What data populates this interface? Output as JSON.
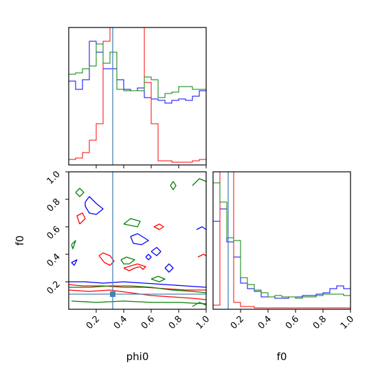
{
  "chart_data": {
    "type": "corner",
    "params": [
      "phi0",
      "f0"
    ],
    "truth": {
      "phi0": 0.32,
      "f0": 0.11
    },
    "truth_color": "#4682b4",
    "grid": false,
    "series": [
      {
        "color": "#0000ff"
      },
      {
        "color": "#ff0000"
      },
      {
        "color": "#008000"
      }
    ],
    "panels": [
      {
        "id": "phi0-hist",
        "type": "histogram",
        "x_param": "phi0",
        "xlim": [
          0,
          1
        ],
        "ylim": [
          0,
          1
        ],
        "bin_edges": [
          0,
          0.05,
          0.1,
          0.15,
          0.2,
          0.25,
          0.3,
          0.35,
          0.4,
          0.45,
          0.5,
          0.55,
          0.6,
          0.65,
          0.7,
          0.75,
          0.8,
          0.85,
          0.9,
          0.95,
          1.0
        ],
        "hist": [
          {
            "series": 0,
            "values": [
              0.61,
              0.55,
              0.62,
              0.9,
              0.82,
              0.7,
              0.7,
              0.62,
              0.55,
              0.54,
              0.56,
              0.49,
              0.48,
              0.47,
              0.45,
              0.47,
              0.48,
              0.47,
              0.5,
              0.54
            ]
          },
          {
            "series": 1,
            "values": [
              0.04,
              0.05,
              0.09,
              0.18,
              0.3,
              0.9,
              1.0,
              1.0,
              1.0,
              1.0,
              1.0,
              0.6,
              0.3,
              0.03,
              0.03,
              0.02,
              0.02,
              0.02,
              0.03,
              0.04
            ]
          },
          {
            "series": 2,
            "values": [
              0.66,
              0.67,
              0.7,
              0.72,
              0.88,
              0.74,
              0.82,
              0.55,
              0.54,
              0.54,
              0.54,
              0.64,
              0.62,
              0.49,
              0.52,
              0.53,
              0.57,
              0.57,
              0.55,
              0.55
            ]
          }
        ],
        "truth_x": 0.32
      },
      {
        "id": "f0-hist",
        "type": "histogram",
        "x_param": "f0",
        "xlim": [
          0,
          1
        ],
        "ylim": [
          0,
          1
        ],
        "xticks": [
          0.2,
          0.4,
          0.6,
          0.8,
          1.0
        ],
        "xticklabels": [
          "0.2",
          "0.4",
          "0.6",
          "0.8",
          "1.0"
        ],
        "xlabel": "f0",
        "bin_edges": [
          0,
          0.05,
          0.1,
          0.15,
          0.2,
          0.25,
          0.3,
          0.35,
          0.4,
          0.45,
          0.5,
          0.55,
          0.6,
          0.65,
          0.7,
          0.75,
          0.8,
          0.85,
          0.9,
          0.95,
          1.0
        ],
        "hist": [
          {
            "series": 0,
            "values": [
              0.64,
              0.73,
              0.49,
              0.38,
              0.19,
              0.15,
              0.13,
              0.09,
              0.09,
              0.08,
              0.08,
              0.09,
              0.09,
              0.1,
              0.1,
              0.11,
              0.12,
              0.15,
              0.17,
              0.15
            ]
          },
          {
            "series": 1,
            "values": [
              0.03,
              1.0,
              1.0,
              0.05,
              0.02,
              0.02,
              0.01,
              0.01,
              0.01,
              0.01,
              0.01,
              0.01,
              0.01,
              0.01,
              0.01,
              0.01,
              0.01,
              0.01,
              0.01,
              0.01
            ]
          },
          {
            "series": 2,
            "values": [
              0.92,
              0.78,
              0.52,
              0.5,
              0.23,
              0.18,
              0.14,
              0.12,
              0.09,
              0.1,
              0.09,
              0.09,
              0.08,
              0.09,
              0.09,
              0.1,
              0.11,
              0.11,
              0.11,
              0.1
            ]
          }
        ],
        "truth_x": 0.11
      },
      {
        "id": "f0-vs-phi0",
        "type": "contour",
        "x_param": "phi0",
        "y_param": "f0",
        "xlim": [
          0,
          1
        ],
        "ylim": [
          0,
          1
        ],
        "xticks": [
          0.2,
          0.4,
          0.6,
          0.8,
          1.0
        ],
        "xticklabels": [
          "0.2",
          "0.4",
          "0.6",
          "0.8",
          "1.0"
        ],
        "yticks": [
          0.2,
          0.4,
          0.6,
          0.8,
          1.0
        ],
        "yticklabels": [
          "0.2",
          "0.4",
          "0.6",
          "0.8",
          "1.0"
        ],
        "xlabel": "phi0",
        "ylabel": "f0",
        "truth_point": [
          0.32,
          0.11
        ],
        "contours": [
          {
            "series": 1,
            "points": [
              [
                0,
                0.18
              ],
              [
                0.1,
                0.17
              ],
              [
                0.25,
                0.17
              ],
              [
                0.4,
                0.16
              ],
              [
                0.55,
                0.16
              ],
              [
                0.7,
                0.15
              ],
              [
                0.85,
                0.14
              ],
              [
                1.0,
                0.14
              ]
            ]
          },
          {
            "series": 1,
            "points": [
              [
                0,
                0.14
              ],
              [
                0.15,
                0.13
              ],
              [
                0.3,
                0.14
              ],
              [
                0.45,
                0.12
              ],
              [
                0.6,
                0.1
              ],
              [
                0.75,
                0.09
              ],
              [
                0.9,
                0.08
              ],
              [
                1.0,
                0.07
              ]
            ]
          },
          {
            "series": 1,
            "points": [
              [
                0.22,
                0.39
              ],
              [
                0.26,
                0.34
              ],
              [
                0.3,
                0.32
              ],
              [
                0.33,
                0.35
              ],
              [
                0.3,
                0.39
              ],
              [
                0.25,
                0.41
              ],
              [
                0.22,
                0.39
              ]
            ]
          },
          {
            "series": 1,
            "points": [
              [
                0.4,
                0.3
              ],
              [
                0.44,
                0.28
              ],
              [
                0.48,
                0.3
              ],
              [
                0.52,
                0.31
              ],
              [
                0.54,
                0.29
              ],
              [
                0.56,
                0.31
              ],
              [
                0.5,
                0.33
              ],
              [
                0.4,
                0.3
              ]
            ]
          },
          {
            "series": 1,
            "points": [
              [
                0.62,
                0.6
              ],
              [
                0.66,
                0.62
              ],
              [
                0.69,
                0.6
              ],
              [
                0.66,
                0.58
              ],
              [
                0.62,
                0.6
              ]
            ]
          },
          {
            "series": 1,
            "points": [
              [
                0.08,
                0.62
              ],
              [
                0.12,
                0.66
              ],
              [
                0.1,
                0.7
              ],
              [
                0.06,
                0.68
              ],
              [
                0.08,
                0.62
              ]
            ]
          },
          {
            "series": 1,
            "points": [
              [
                0.94,
                0.38
              ],
              [
                0.98,
                0.4
              ],
              [
                1.0,
                0.39
              ]
            ]
          },
          {
            "series": 0,
            "points": [
              [
                0,
                0.2
              ],
              [
                0.12,
                0.2
              ],
              [
                0.25,
                0.19
              ],
              [
                0.4,
                0.2
              ],
              [
                0.55,
                0.19
              ],
              [
                0.7,
                0.18
              ],
              [
                0.85,
                0.17
              ],
              [
                1.0,
                0.16
              ]
            ]
          },
          {
            "series": 0,
            "points": [
              [
                0.12,
                0.78
              ],
              [
                0.15,
                0.82
              ],
              [
                0.2,
                0.77
              ],
              [
                0.25,
                0.73
              ],
              [
                0.2,
                0.69
              ],
              [
                0.15,
                0.7
              ],
              [
                0.12,
                0.75
              ],
              [
                0.12,
                0.78
              ]
            ]
          },
          {
            "series": 0,
            "points": [
              [
                0.45,
                0.53
              ],
              [
                0.5,
                0.55
              ],
              [
                0.55,
                0.52
              ],
              [
                0.58,
                0.5
              ],
              [
                0.53,
                0.47
              ],
              [
                0.47,
                0.48
              ],
              [
                0.45,
                0.53
              ]
            ]
          },
          {
            "series": 0,
            "points": [
              [
                0.56,
                0.38
              ],
              [
                0.58,
                0.36
              ],
              [
                0.6,
                0.38
              ],
              [
                0.58,
                0.4
              ],
              [
                0.56,
                0.38
              ]
            ]
          },
          {
            "series": 0,
            "points": [
              [
                0.6,
                0.42
              ],
              [
                0.64,
                0.45
              ],
              [
                0.67,
                0.42
              ],
              [
                0.64,
                0.39
              ],
              [
                0.6,
                0.42
              ]
            ]
          },
          {
            "series": 0,
            "points": [
              [
                0.7,
                0.3
              ],
              [
                0.73,
                0.33
              ],
              [
                0.76,
                0.3
              ],
              [
                0.73,
                0.27
              ],
              [
                0.7,
                0.3
              ]
            ]
          },
          {
            "series": 0,
            "points": [
              [
                0.93,
                0.58
              ],
              [
                0.97,
                0.6
              ],
              [
                1.0,
                0.58
              ]
            ]
          },
          {
            "series": 0,
            "points": [
              [
                0.02,
                0.34
              ],
              [
                0.06,
                0.36
              ],
              [
                0.04,
                0.32
              ],
              [
                0.02,
                0.34
              ]
            ]
          },
          {
            "series": 2,
            "points": [
              [
                0,
                0.16
              ],
              [
                0.15,
                0.16
              ],
              [
                0.3,
                0.17
              ],
              [
                0.45,
                0.17
              ],
              [
                0.6,
                0.16
              ],
              [
                0.75,
                0.14
              ],
              [
                0.9,
                0.13
              ],
              [
                1.0,
                0.12
              ]
            ]
          },
          {
            "series": 2,
            "points": [
              [
                0.02,
                0.06
              ],
              [
                0.2,
                0.05
              ],
              [
                0.4,
                0.06
              ],
              [
                0.6,
                0.05
              ],
              [
                0.8,
                0.05
              ],
              [
                1.0,
                0.04
              ]
            ]
          },
          {
            "series": 2,
            "points": [
              [
                0.38,
                0.36
              ],
              [
                0.42,
                0.38
              ],
              [
                0.48,
                0.36
              ],
              [
                0.44,
                0.33
              ],
              [
                0.4,
                0.33
              ],
              [
                0.38,
                0.36
              ]
            ]
          },
          {
            "series": 2,
            "points": [
              [
                0.6,
                0.22
              ],
              [
                0.65,
                0.24
              ],
              [
                0.7,
                0.22
              ],
              [
                0.66,
                0.2
              ],
              [
                0.6,
                0.22
              ]
            ]
          },
          {
            "series": 2,
            "points": [
              [
                0.05,
                0.85
              ],
              [
                0.08,
                0.88
              ],
              [
                0.11,
                0.85
              ],
              [
                0.08,
                0.82
              ],
              [
                0.05,
                0.85
              ]
            ]
          },
          {
            "series": 2,
            "points": [
              [
                0.4,
                0.62
              ],
              [
                0.45,
                0.66
              ],
              [
                0.52,
                0.64
              ],
              [
                0.5,
                0.6
              ],
              [
                0.4,
                0.62
              ]
            ]
          },
          {
            "series": 2,
            "points": [
              [
                0.74,
                0.9
              ],
              [
                0.76,
                0.93
              ],
              [
                0.78,
                0.9
              ],
              [
                0.76,
                0.87
              ],
              [
                0.74,
                0.9
              ]
            ]
          },
          {
            "series": 2,
            "points": [
              [
                0.9,
                0.9
              ],
              [
                0.95,
                0.95
              ],
              [
                1.0,
                0.93
              ]
            ]
          },
          {
            "series": 2,
            "points": [
              [
                0.02,
                0.47
              ],
              [
                0.05,
                0.5
              ],
              [
                0.03,
                0.44
              ],
              [
                0.02,
                0.47
              ]
            ]
          },
          {
            "series": 2,
            "points": [
              [
                0.9,
                0.02
              ],
              [
                0.95,
                0.05
              ],
              [
                1.0,
                0.03
              ]
            ]
          }
        ]
      }
    ]
  }
}
